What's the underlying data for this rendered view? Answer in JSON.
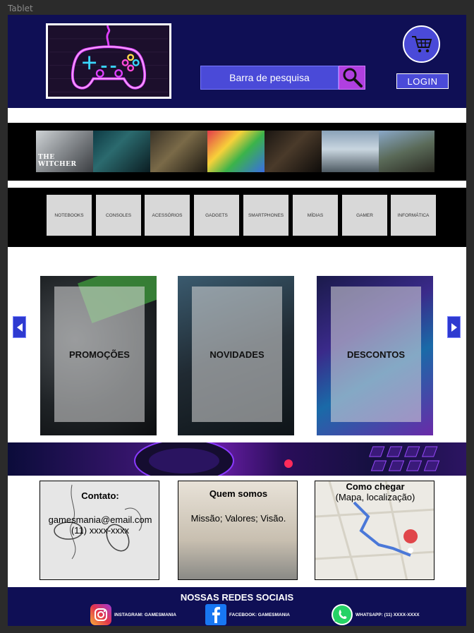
{
  "frame": {
    "label": "Tablet"
  },
  "header": {
    "search_placeholder": "Barra de pesquisa",
    "login_label": "LOGIN"
  },
  "games": [
    {
      "name": "witcher",
      "title": "THE WITCHER"
    },
    {
      "name": "bioshock",
      "title": ""
    },
    {
      "name": "fallout",
      "title": ""
    },
    {
      "name": "mario-party",
      "title": ""
    },
    {
      "name": "call-of-duty",
      "title": ""
    },
    {
      "name": "skyrim",
      "title": ""
    },
    {
      "name": "ark",
      "title": ""
    }
  ],
  "categories": [
    "NOTEBOOKS",
    "CONSOLES",
    "ACESSÓRIOS",
    "GADGETS",
    "SMARTPHONES",
    "MÍDIAS",
    "GAMER",
    "INFORMÁTICA"
  ],
  "cards": [
    {
      "label": "PROMOÇÕES"
    },
    {
      "label": "NOVIDADES"
    },
    {
      "label": "DESCONTOS"
    }
  ],
  "info": {
    "contact": {
      "title": "Contato:",
      "email": "gamesmania@email.com",
      "phone": "(11) xxxx-xxxx"
    },
    "about": {
      "title": "Quem somos",
      "text": "Missão; Valores; Visão."
    },
    "location": {
      "title": "Como chegar",
      "text": "(Mapa, localização)"
    }
  },
  "footer": {
    "title": "NOSSAS REDES SOCIAIS",
    "instagram": "INSTAGRAM: GAMESMANIA",
    "facebook": "FACEBOOK: GAMESMANIA",
    "whatsapp": "WHATSAPP: (11) XXXX-XXXX"
  },
  "colors": {
    "navy": "#0f0f55",
    "accent_blue": "#4a4ad8",
    "accent_purple": "#b03fe0"
  }
}
